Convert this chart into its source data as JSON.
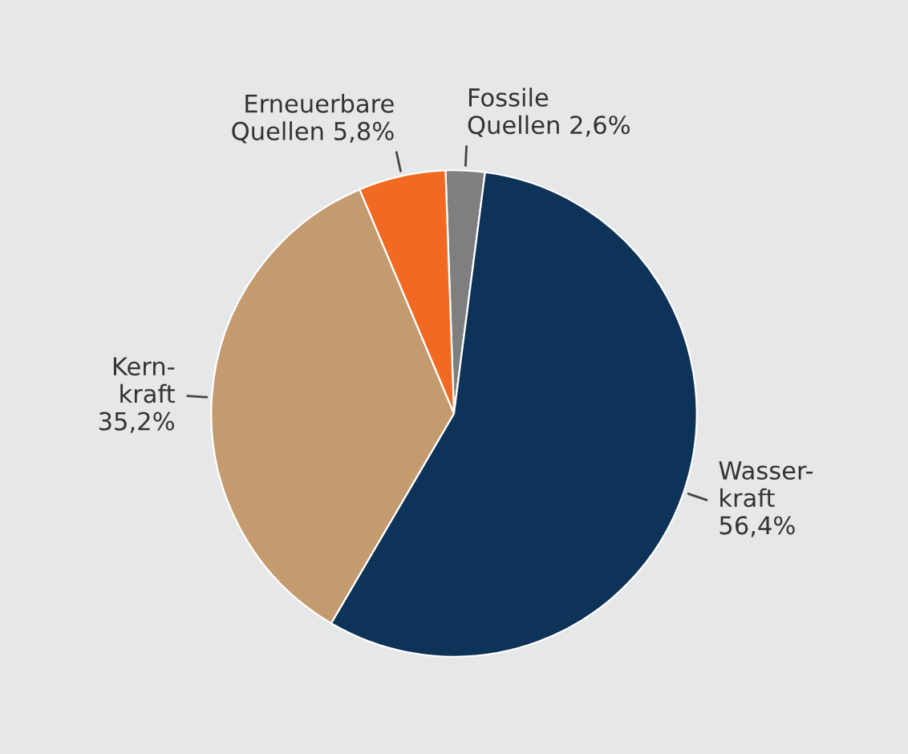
{
  "chart_data": {
    "type": "pie",
    "categories": [
      "Fossile\nQuellen",
      "Wasser-\nkraft",
      "Kern-\nkraft",
      "Erneuerbare\nQuellen"
    ],
    "values": [
      2.6,
      56.4,
      35.2,
      5.8
    ],
    "value_labels": [
      "2,6%",
      "56,4%",
      "35,2%",
      "5,8%"
    ],
    "colors": [
      "#7f7f7f",
      "#0e3359",
      "#c49a6f",
      "#f26a21"
    ],
    "legend": false
  }
}
